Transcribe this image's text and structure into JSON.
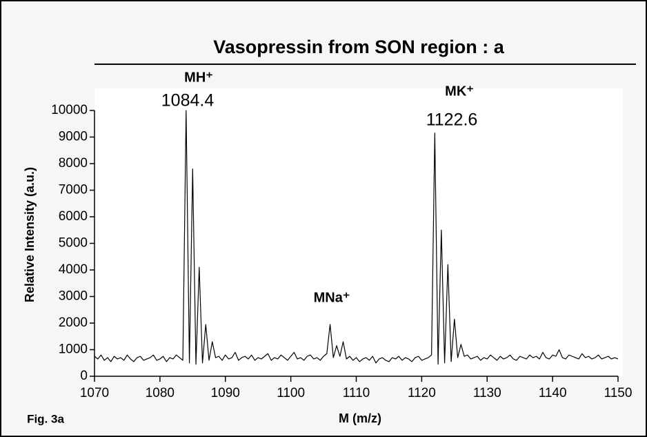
{
  "chart_data": {
    "type": "line",
    "title": "Vasopressin from SON region : a",
    "x_label": "M (m/z)",
    "y_label": "Relative Intensity (a.u.)",
    "figure_label": "Fig. 3a",
    "annotations": [
      "MH⁺",
      "1084.4",
      "MK⁺",
      "1122.6",
      "MNa⁺"
    ],
    "xlim": [
      1070,
      1150
    ],
    "ylim": [
      0,
      10000
    ],
    "xticks": [
      1070,
      1080,
      1090,
      1100,
      1110,
      1120,
      1130,
      1140,
      1150
    ],
    "yticks": [
      0,
      1000,
      2000,
      3000,
      4000,
      5000,
      6000,
      7000,
      8000,
      9000,
      10000
    ],
    "x": [
      1070,
      1070.5,
      1071,
      1071.5,
      1072,
      1072.5,
      1073,
      1073.5,
      1074,
      1074.5,
      1075,
      1075.5,
      1076,
      1076.5,
      1077,
      1077.5,
      1078,
      1078.5,
      1079,
      1079.5,
      1080,
      1080.5,
      1081,
      1081.5,
      1082,
      1082.5,
      1083,
      1083.5,
      1084,
      1084.5,
      1085,
      1085.5,
      1086,
      1086.5,
      1087,
      1087.5,
      1088,
      1088.5,
      1089,
      1089.5,
      1090,
      1090.5,
      1091,
      1091.5,
      1092,
      1092.5,
      1093,
      1093.5,
      1094,
      1094.5,
      1095,
      1095.5,
      1096,
      1096.5,
      1097,
      1097.5,
      1098,
      1098.5,
      1099,
      1099.5,
      1100,
      1100.5,
      1101,
      1101.5,
      1102,
      1102.5,
      1103,
      1103.5,
      1104,
      1104.5,
      1105,
      1105.5,
      1106,
      1106.5,
      1107,
      1107.5,
      1108,
      1108.5,
      1109,
      1109.5,
      1110,
      1110.5,
      1111,
      1111.5,
      1112,
      1112.5,
      1113,
      1113.5,
      1114,
      1114.5,
      1115,
      1115.5,
      1116,
      1116.5,
      1117,
      1117.5,
      1118,
      1118.5,
      1119,
      1119.5,
      1120,
      1120.5,
      1121,
      1121.5,
      1122,
      1122.5,
      1123,
      1123.5,
      1124,
      1124.5,
      1125,
      1125.5,
      1126,
      1126.5,
      1127,
      1127.5,
      1128,
      1128.5,
      1129,
      1129.5,
      1130,
      1130.5,
      1131,
      1131.5,
      1132,
      1132.5,
      1133,
      1133.5,
      1134,
      1134.5,
      1135,
      1135.5,
      1136,
      1136.5,
      1137,
      1137.5,
      1138,
      1138.5,
      1139,
      1139.5,
      1140,
      1140.5,
      1141,
      1141.5,
      1142,
      1142.5,
      1143,
      1143.5,
      1144,
      1144.5,
      1145,
      1145.5,
      1146,
      1146.5,
      1147,
      1147.5,
      1148,
      1148.5,
      1149,
      1149.5,
      1150
    ],
    "series": [
      {
        "color": "#000000",
        "values": [
          750,
          650,
          800,
          600,
          700,
          550,
          750,
          650,
          700,
          600,
          800,
          650,
          550,
          700,
          750,
          600,
          650,
          700,
          800,
          600,
          650,
          750,
          550,
          700,
          650,
          800,
          700,
          600,
          10000,
          500,
          7800,
          450,
          4100,
          500,
          1950,
          600,
          1300,
          700,
          750,
          600,
          800,
          650,
          700,
          900,
          600,
          700,
          750,
          650,
          800,
          600,
          700,
          650,
          750,
          850,
          600,
          700,
          650,
          800,
          700,
          600,
          750,
          900,
          650,
          700,
          600,
          750,
          800,
          650,
          700,
          600,
          750,
          850,
          1950,
          700,
          1150,
          750,
          1300,
          650,
          750,
          600,
          700,
          550,
          650,
          700,
          600,
          750,
          500,
          650,
          700,
          600,
          550,
          700,
          650,
          750,
          600,
          700,
          650,
          550,
          700,
          750,
          600,
          650,
          700,
          800,
          9150,
          450,
          5500,
          500,
          4200,
          550,
          2150,
          700,
          1200,
          750,
          800,
          650,
          700,
          750,
          600,
          700,
          650,
          800,
          700,
          600,
          750,
          650,
          700,
          800,
          650,
          600,
          750,
          700,
          650,
          800,
          700,
          750,
          650,
          900,
          700,
          650,
          800,
          750,
          1000,
          700,
          650,
          800,
          750,
          700,
          650,
          850,
          700,
          750,
          650,
          700,
          800,
          650,
          700,
          750,
          650,
          700,
          650
        ]
      }
    ]
  }
}
